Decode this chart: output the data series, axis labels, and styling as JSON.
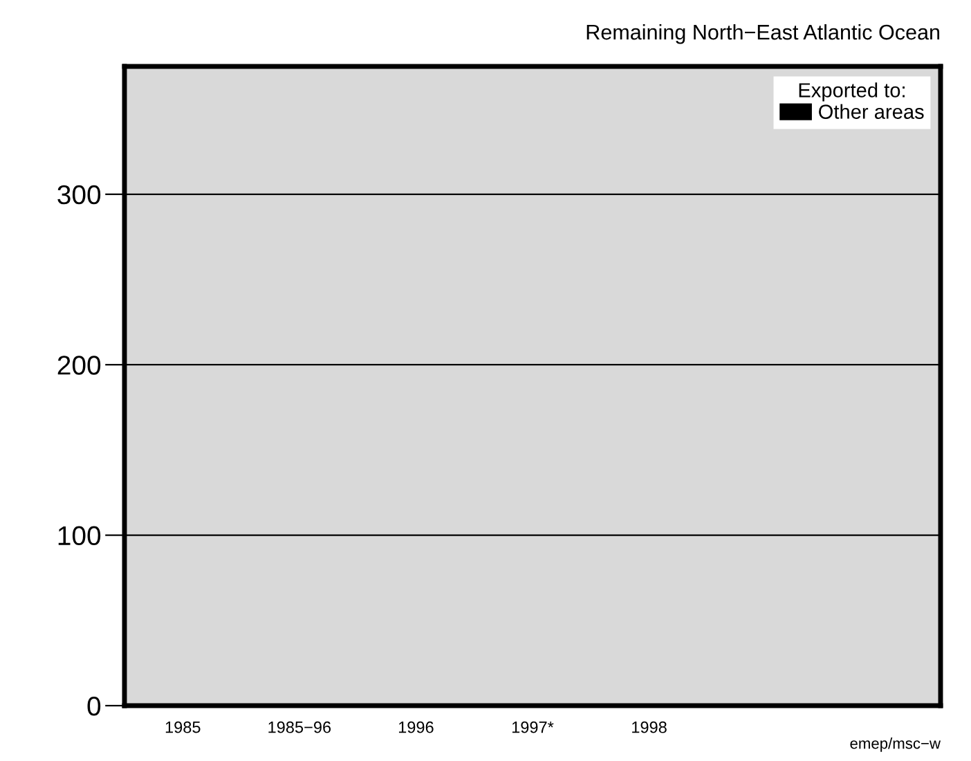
{
  "chart_data": {
    "type": "bar",
    "title": "Remaining North−East Atlantic Ocean",
    "categories": [
      "1985",
      "1985−96",
      "1996",
      "1997*",
      "1998",
      null,
      null
    ],
    "series": [
      {
        "name": "Other areas",
        "color": "#000000",
        "values": [
          0,
          0,
          0,
          0,
          0,
          null,
          null
        ]
      }
    ],
    "legend_title": "Exported to:",
    "legend": "top right",
    "ylim": [
      0,
      375
    ],
    "yticks": [
      0,
      100,
      200,
      300
    ],
    "grid": "y",
    "annotations": [
      "emep/msc−w"
    ]
  }
}
